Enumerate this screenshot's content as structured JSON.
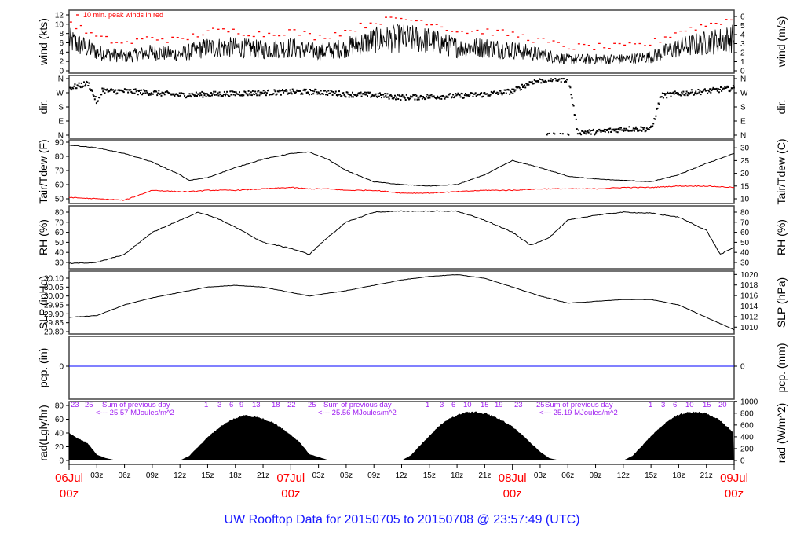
{
  "title": "UW Rooftop Data for 20150705  to  20150708 @ 23:57:49  (UTC)",
  "chart_data": {
    "type": "line",
    "x_unit": "hours since 06Jul 00z",
    "x_range": [
      0,
      72
    ],
    "hour_ticks": {
      "hours": [
        3,
        6,
        9,
        12,
        15,
        18,
        21,
        27,
        30,
        33,
        36,
        39,
        42,
        45,
        51,
        54,
        57,
        60,
        63,
        66,
        69
      ],
      "labels": [
        "03z",
        "06z",
        "09z",
        "12z",
        "15z",
        "18z",
        "21z",
        "03z",
        "06z",
        "09z",
        "12z",
        "15z",
        "18z",
        "21z",
        "03z",
        "06z",
        "09z",
        "12z",
        "15z",
        "18z",
        "21z"
      ]
    },
    "date_ticks": [
      {
        "hour": 0,
        "date": "06Jul",
        "time": "00z"
      },
      {
        "hour": 24,
        "date": "07Jul",
        "time": "00z"
      },
      {
        "hour": 48,
        "date": "08Jul",
        "time": "00z"
      },
      {
        "hour": 72,
        "date": "09Jul",
        "time": "00z"
      }
    ],
    "colors": {
      "line": "#000000",
      "peak": "#ff0000",
      "dew": "#ff0000",
      "precip": "#0000ff",
      "annotation": "#a020f0",
      "date": "#ff0000",
      "title": "#1a1aff"
    },
    "wind": {
      "ylabel": "wind (kts)",
      "ylabel_right": "wind (m/s)",
      "ylim": [
        0,
        12
      ],
      "ticks_left": [
        "0",
        "2",
        "4",
        "6",
        "8",
        "10",
        "12"
      ],
      "ticks_right": [
        "0",
        "1",
        "2",
        "3",
        "4",
        "5",
        "6"
      ],
      "legend": "10 min. peak winds in red",
      "hours": [
        0,
        3,
        6,
        9,
        12,
        15,
        18,
        21,
        24,
        27,
        30,
        33,
        36,
        39,
        42,
        45,
        48,
        51,
        54,
        57,
        60,
        63,
        66,
        69,
        72
      ],
      "mean_kts": [
        6.5,
        4,
        3,
        4,
        3.5,
        5,
        5,
        4.5,
        5,
        4,
        5,
        6.5,
        7,
        6.5,
        5,
        5,
        4.5,
        3.5,
        2.5,
        2.5,
        2.5,
        3,
        5,
        6,
        7
      ]
    },
    "direction": {
      "ylabel": "dir.",
      "ylabel_right": "dir.",
      "ticks_left": [
        "N",
        "E",
        "S",
        "W",
        "N"
      ],
      "ticks_right": [
        "N",
        "E",
        "S",
        "W",
        "N"
      ],
      "hours": [
        0,
        2,
        3,
        3.5,
        4,
        6,
        9,
        12,
        15,
        18,
        21,
        24,
        27,
        30,
        33,
        36,
        39,
        42,
        45,
        48,
        50,
        52,
        54,
        55,
        57,
        60,
        63,
        64,
        66,
        69,
        72
      ],
      "degrees": [
        300,
        330,
        200,
        290,
        280,
        280,
        270,
        255,
        260,
        265,
        270,
        275,
        275,
        260,
        255,
        240,
        245,
        250,
        260,
        280,
        340,
        355,
        355,
        20,
        20,
        40,
        40,
        250,
        265,
        280,
        300
      ]
    },
    "temperature": {
      "ylabel": "Tair/Tdew (F)",
      "ylabel_right": "Tair/Tdew (C)",
      "ylim": [
        50,
        90
      ],
      "ticks_left": [
        "50",
        "60",
        "70",
        "80",
        "90"
      ],
      "ticks_right": [
        "10",
        "15",
        "20",
        "25",
        "30"
      ],
      "hours": [
        0,
        3,
        6,
        9,
        12,
        13,
        15,
        18,
        21,
        24,
        26,
        28,
        30,
        33,
        36,
        39,
        42,
        45,
        48,
        51,
        54,
        57,
        60,
        63,
        66,
        69,
        72
      ],
      "tair_f": [
        88,
        86,
        82,
        76,
        67,
        63,
        65,
        72,
        78,
        82,
        83,
        78,
        70,
        62,
        60,
        59,
        60,
        67,
        77,
        72,
        66,
        64,
        63,
        62,
        67,
        75,
        82
      ],
      "tdew_f": [
        51,
        50,
        49,
        56,
        55,
        55,
        56,
        56,
        57,
        58,
        57,
        57,
        56,
        56,
        54,
        54,
        55,
        56,
        56,
        57,
        57,
        57,
        58,
        58,
        59,
        59,
        58
      ]
    },
    "rh": {
      "ylabel": "RH (%)",
      "ylabel_right": "RH (%)",
      "ylim": [
        30,
        80
      ],
      "ticks_left": [
        "30",
        "40",
        "50",
        "60",
        "70",
        "80"
      ],
      "ticks_right": [
        "30",
        "40",
        "50",
        "60",
        "70",
        "80"
      ],
      "hours": [
        0,
        3,
        6,
        9,
        12,
        14,
        16,
        18,
        21,
        24,
        26,
        28,
        30,
        33,
        36,
        42,
        45,
        48,
        50,
        52,
        54,
        57,
        60,
        63,
        66,
        69,
        70.5,
        72
      ],
      "values": [
        29,
        30,
        38,
        60,
        72,
        80,
        74,
        65,
        50,
        44,
        38,
        55,
        70,
        80,
        81,
        81,
        72,
        60,
        47,
        55,
        72,
        77,
        80,
        79,
        75,
        62,
        38,
        45
      ]
    },
    "slp": {
      "ylabel": "SLP (inHg)",
      "ylabel_right": "SLP (hPa)",
      "ylim": [
        29.8,
        30.1
      ],
      "ticks_left": [
        "29.80",
        "29.85",
        "29.90",
        "29.95",
        "30.00",
        "30.05",
        "30.10"
      ],
      "ticks_right": [
        "1010",
        "1012",
        "1014",
        "1016",
        "1018",
        "1020"
      ],
      "hours": [
        0,
        3,
        6,
        9,
        12,
        15,
        18,
        21,
        24,
        26,
        30,
        33,
        36,
        39,
        42,
        45,
        48,
        51,
        54,
        57,
        60,
        63,
        66,
        69,
        72
      ],
      "values": [
        29.88,
        29.89,
        29.95,
        29.99,
        30.02,
        30.05,
        30.06,
        30.05,
        30.02,
        30.0,
        30.03,
        30.06,
        30.09,
        30.11,
        30.12,
        30.1,
        30.05,
        30.0,
        29.96,
        29.97,
        29.98,
        29.98,
        29.95,
        29.88,
        29.81
      ]
    },
    "precip": {
      "ylabel": "pcp. (in)",
      "ylabel_right": "pcp. (mm)",
      "ticks_left": [
        "0"
      ],
      "ticks_right": [
        "0"
      ],
      "value": 0
    },
    "radiation": {
      "ylabel": "rad(Lgly/hr)",
      "ylabel_right": "rad (W/m^2)",
      "ylim": [
        0,
        80
      ],
      "ticks_left": [
        "0",
        "20",
        "40",
        "60",
        "80"
      ],
      "ticks_right": [
        "0",
        "200",
        "400",
        "600",
        "800",
        "1000"
      ],
      "hourly_wm2": [
        470,
        380,
        300,
        100,
        40,
        5,
        0,
        0,
        0,
        0,
        0,
        0,
        0,
        80,
        240,
        400,
        540,
        650,
        730,
        780,
        760,
        720,
        660,
        560,
        440,
        310,
        110,
        60,
        10,
        0,
        0,
        0,
        0,
        0,
        0,
        0,
        0,
        90,
        260,
        420,
        590,
        700,
        780,
        830,
        840,
        810,
        760,
        680,
        580,
        450,
        300,
        150,
        40,
        5,
        0,
        0,
        0,
        0,
        0,
        0,
        0,
        80,
        250,
        420,
        570,
        700,
        790,
        830,
        840,
        810,
        740,
        620,
        470
      ],
      "daily_sums": [
        {
          "marks": [
            "23",
            "25"
          ],
          "label": "Sum of previous day",
          "sum": "<--- 25.57 MJoules/m^2"
        },
        {
          "marks": [
            "1",
            "3",
            "6",
            "9",
            "13",
            "18",
            "22",
            "25"
          ],
          "label": "Sum of previous day",
          "sum": "<--- 25.56 MJoules/m^2"
        },
        {
          "marks": [
            "1",
            "3",
            "6",
            "10",
            "15",
            "19",
            "23",
            "25"
          ],
          "label": "Sum of previous day",
          "sum": "<--- 25.19 MJoules/m^2"
        },
        {
          "marks": [
            "1",
            "3",
            "6",
            "10",
            "15",
            "20"
          ]
        }
      ]
    }
  }
}
